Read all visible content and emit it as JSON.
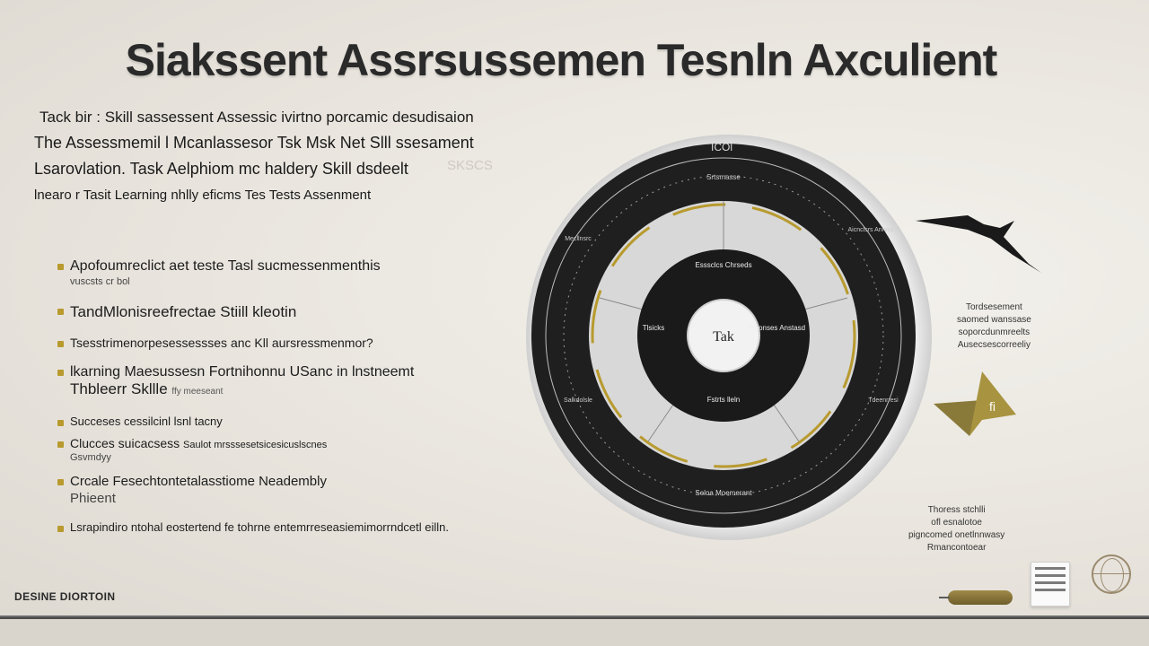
{
  "title": "Siakssent Assrsussemen Tesnln Axculient",
  "intro": {
    "line1": "Tack bir : Skill sassessent Assessic ivirtno porcamic desudisaion",
    "line2": "The Assessmemil l Mcanlassesor Tsk Msk Net Slll ssesament",
    "line3": "Lsarovlation. Task Aelphiom mc haldery Skill dsdeelt",
    "line4": "lnearo r Tasit Learning nhlly eficms Tes Tests Assenment",
    "ghost": "SKSCS"
  },
  "bullets": [
    {
      "text": "Apofoumreclict aet teste Tasl sucmessenmenthis",
      "sub": "vuscsts cr bol"
    },
    {
      "text": "TandMlonisreefrectae Stiill kleotin"
    },
    {
      "text": "Tsesstrimenorpesessessses anc Kll aursressmenmor?"
    },
    {
      "text": "lkarning Maesussesn Fortnihonnu USanc in lnstneemt",
      "line2": "Thbleerr Skllle",
      "small": "ffy  meeseant"
    },
    {
      "text": "Succeses cessilcinl lsnl tacny"
    },
    {
      "text": "Clucces  suicacsess",
      "small_inline": "Saulot mrsssesetsicesicuslscnes",
      "line2": "Gsvmdyy"
    },
    {
      "text": "Crcale Fesechtontetalasstiome Neadembly",
      "line2": "Phieent"
    },
    {
      "text": "Lsrapindiro ntohal eostertend fe tohrne entemrreseasiemimorrndcetl eilln."
    }
  ],
  "footer": "DESINE DIORTOIN",
  "wheel": {
    "center": "Tak",
    "top_label": "ICOl",
    "segments": [
      "Esssclcs Chrseds",
      "Reonses Anstasd",
      "Fstrts lleln",
      "Tlsicks",
      "Seloa Moemerant"
    ],
    "outer_labels": [
      "Srtsmasse",
      "Aicnclsrs Anrvcs",
      "Tdeenrresi",
      "Salkdolsle",
      "Mecllnsrc"
    ]
  },
  "right_note_1": [
    "Tordsesement",
    "saomed wanssase",
    "soporcdunmreelts",
    "Ausecsescorreeliy"
  ],
  "fold_label": "fi",
  "right_note_2": [
    "Thoress stchlli",
    "ofl esnalotoe",
    "pigncomed onetlnnwasy",
    "Rmancontoear"
  ],
  "colors": {
    "accent_gold": "#b89a2e",
    "wheel_dark": "#1e1e1e",
    "olive": "#8a7a3a"
  }
}
